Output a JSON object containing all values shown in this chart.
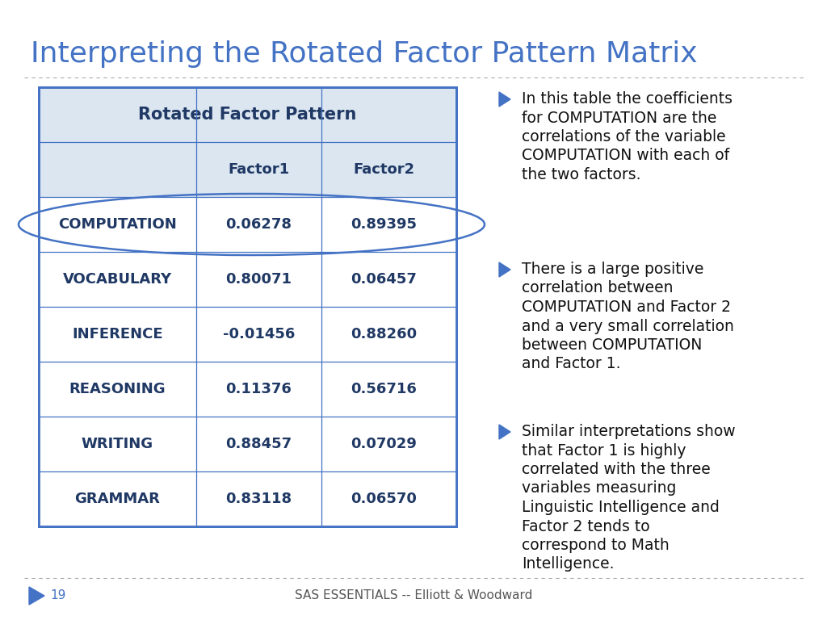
{
  "title": "Interpreting the Rotated Factor Pattern Matrix",
  "title_color": "#4472C4",
  "title_fontsize": 26,
  "background_color": "#FFFFFF",
  "table_header": "Rotated Factor Pattern",
  "table_col_headers": [
    "",
    "Factor1",
    "Factor2"
  ],
  "table_rows": [
    [
      "COMPUTATION",
      "0.06278",
      "0.89395"
    ],
    [
      "VOCABULARY",
      "0.80071",
      "0.06457"
    ],
    [
      "INFERENCE",
      "-0.01456",
      "0.88260"
    ],
    [
      "REASONING",
      "0.11376",
      "0.56716"
    ],
    [
      "WRITING",
      "0.88457",
      "0.07029"
    ],
    [
      "GRAMMAR",
      "0.83118",
      "0.06570"
    ]
  ],
  "table_header_bg": "#DCE6F1",
  "table_row_bg": "#FFFFFF",
  "table_border_color": "#4472C4",
  "table_text_color": "#1F3864",
  "bullet_color": "#4472C4",
  "footer_text": "SAS ESSENTIALS -- Elliott & Woodward",
  "footer_page": "19",
  "footer_color": "#4472C4",
  "bullet_points": [
    "In this table the coefficients\nfor COMPUTATION are the\ncorrelations of the variable\nCOMPUTATION with each of\nthe two factors.",
    "There is a large positive\ncorrelation between\nCOMPUTATION and Factor 2\nand a very small correlation\nbetween COMPUTATION\nand Factor 1.",
    "Similar interpretations show\nthat Factor 1 is highly\ncorrelated with the three\nvariables measuring\nLinguistic Intelligence and\nFactor 2 tends to\ncorrespond to Math\nIntelligence."
  ]
}
